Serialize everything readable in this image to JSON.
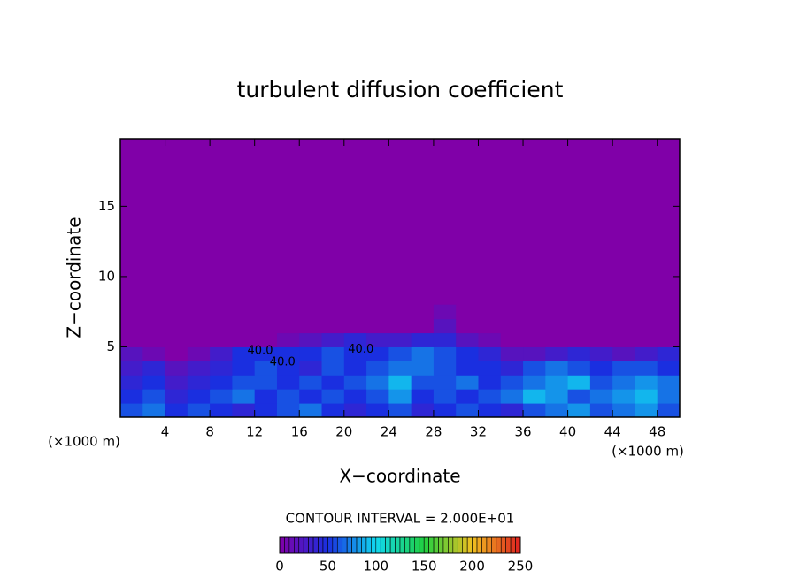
{
  "chart_data": {
    "type": "contour",
    "title": "turbulent diffusion coefficient",
    "x_label": "X−coordinate",
    "y_label": "Z−coordinate",
    "x_unit_left": "(×1000 m)",
    "x_unit_right": "(×1000 m)",
    "contour_note": "CONTOUR INTERVAL = 2.000E+01",
    "background_color": "#8000a8",
    "xlim": [
      0,
      50
    ],
    "ylim": [
      0,
      19.8
    ],
    "xticks": [
      4,
      8,
      12,
      16,
      20,
      24,
      28,
      32,
      36,
      40,
      44,
      48
    ],
    "yticks": [
      5,
      10,
      15
    ],
    "xbins": [
      0,
      2,
      4,
      6,
      8,
      10,
      12,
      14,
      16,
      18,
      20,
      22,
      24,
      26,
      28,
      30,
      32,
      34,
      36,
      38,
      40,
      42,
      44,
      46,
      48,
      50
    ],
    "ybins": [
      0,
      1,
      2,
      3,
      4,
      5,
      6,
      7,
      8
    ],
    "z": [
      [
        60,
        70,
        50,
        60,
        50,
        40,
        50,
        60,
        70,
        50,
        40,
        50,
        60,
        40,
        50,
        60,
        50,
        40,
        60,
        70,
        80,
        60,
        70,
        80,
        60
      ],
      [
        50,
        60,
        40,
        50,
        60,
        70,
        50,
        60,
        50,
        60,
        50,
        60,
        80,
        50,
        60,
        50,
        60,
        70,
        90,
        80,
        60,
        70,
        80,
        90,
        70
      ],
      [
        40,
        50,
        30,
        40,
        50,
        60,
        60,
        50,
        60,
        50,
        60,
        70,
        90,
        60,
        60,
        70,
        50,
        60,
        70,
        80,
        90,
        60,
        70,
        80,
        70
      ],
      [
        30,
        40,
        20,
        30,
        40,
        50,
        60,
        50,
        40,
        60,
        50,
        60,
        70,
        70,
        60,
        50,
        50,
        40,
        60,
        70,
        60,
        50,
        60,
        60,
        50
      ],
      [
        20,
        10,
        0,
        10,
        30,
        50,
        50,
        50,
        50,
        60,
        50,
        50,
        60,
        70,
        60,
        50,
        40,
        20,
        20,
        30,
        40,
        30,
        20,
        30,
        40
      ],
      [
        0,
        0,
        0,
        0,
        0,
        0,
        0,
        10,
        20,
        30,
        40,
        30,
        30,
        40,
        40,
        20,
        10,
        0,
        0,
        0,
        0,
        0,
        0,
        0,
        0
      ],
      [
        0,
        0,
        0,
        0,
        0,
        0,
        0,
        0,
        0,
        0,
        0,
        0,
        0,
        0,
        20,
        0,
        0,
        0,
        0,
        0,
        0,
        0,
        0,
        0,
        0
      ],
      [
        0,
        0,
        0,
        0,
        0,
        0,
        0,
        0,
        0,
        0,
        0,
        0,
        0,
        0,
        10,
        0,
        0,
        0,
        0,
        0,
        0,
        0,
        0,
        0,
        0
      ]
    ],
    "annotations": [
      {
        "text": "40.0",
        "x": 12.5,
        "y": 4.7
      },
      {
        "text": "40.0",
        "x": 14.5,
        "y": 3.9
      },
      {
        "text": "40.0",
        "x": 21.5,
        "y": 4.8
      }
    ],
    "colorbar": {
      "lim": [
        0,
        250
      ],
      "ticks": [
        0,
        50,
        100,
        150,
        200,
        250
      ],
      "colors": [
        "#8000a8",
        "#1a2fe0",
        "#10d8f0",
        "#20d040",
        "#f0c020",
        "#e02020"
      ]
    }
  }
}
